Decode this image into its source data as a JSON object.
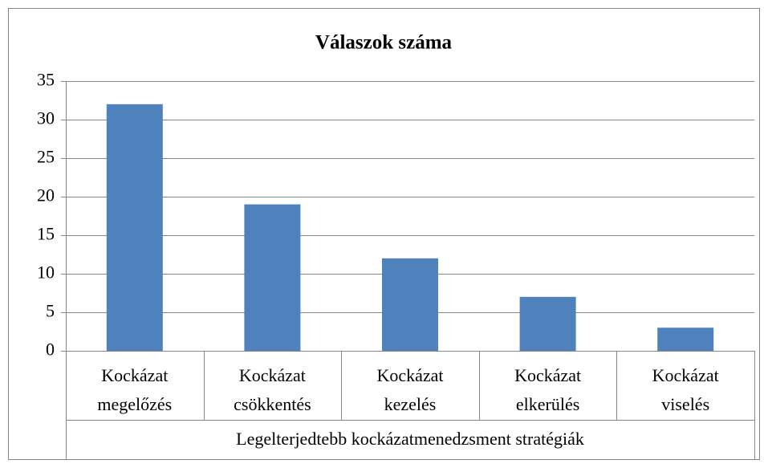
{
  "chart_data": {
    "type": "bar",
    "title": "Válaszok száma",
    "categories": [
      [
        "Kockázat",
        "megelőzés"
      ],
      [
        "Kockázat",
        "csökkentés"
      ],
      [
        "Kockázat",
        "kezelés"
      ],
      [
        "Kockázat",
        "elkerülés"
      ],
      [
        "Kockázat",
        "viselés"
      ]
    ],
    "category_group": "Legelterjedtebb kockázatmenedzsment stratégiák",
    "values": [
      32,
      19,
      12,
      7,
      3
    ],
    "color": "#4f81bd",
    "ylim": [
      0,
      35
    ],
    "yticks": [
      0,
      5,
      10,
      15,
      20,
      25,
      30,
      35
    ],
    "grid": true
  }
}
